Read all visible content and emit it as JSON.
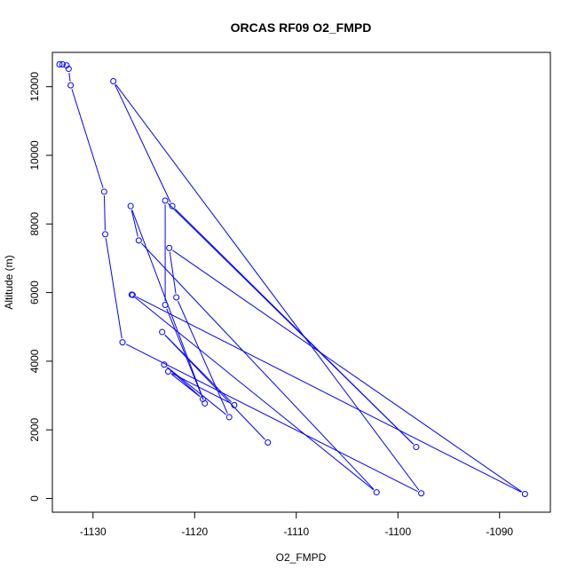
{
  "chart_data": {
    "type": "line",
    "title": "ORCAS RF09 O2_FMPD",
    "xlabel": "O2_FMPD",
    "ylabel": "Altitude (m)",
    "xlim": [
      -1134,
      -1085
    ],
    "ylim": [
      -400,
      13000
    ],
    "xticks": [
      -1130,
      -1120,
      -1110,
      -1100,
      -1090
    ],
    "yticks": [
      0,
      2000,
      4000,
      6000,
      8000,
      10000,
      12000
    ],
    "grid": false,
    "series": [
      {
        "color": "#0000ff",
        "marker": "open-circle",
        "x": [
          -1133.3,
          -1133.0,
          -1132.6,
          -1132.4,
          -1132.2,
          -1128.9,
          -1128.8,
          -1127.1,
          -1097.7,
          -1128.0,
          -1122.2,
          -1098.2,
          -1122.9,
          -1122.9,
          -1119.0,
          -1126.3,
          -1125.5,
          -1102.1,
          -1126.2,
          -1126.1,
          -1087.5,
          -1122.5,
          -1121.8,
          -1116.6,
          -1123.0,
          -1119.2,
          -1122.6,
          -1116.1,
          -1123.2,
          -1112.8
        ],
        "y": [
          12650,
          12650,
          12620,
          12520,
          12040,
          8940,
          7700,
          4550,
          150,
          12160,
          8520,
          1500,
          8680,
          5640,
          2770,
          8520,
          7520,
          180,
          5940,
          5930,
          130,
          7300,
          5860,
          2370,
          3900,
          2900,
          3700,
          2720,
          4850,
          1630
        ]
      }
    ]
  }
}
